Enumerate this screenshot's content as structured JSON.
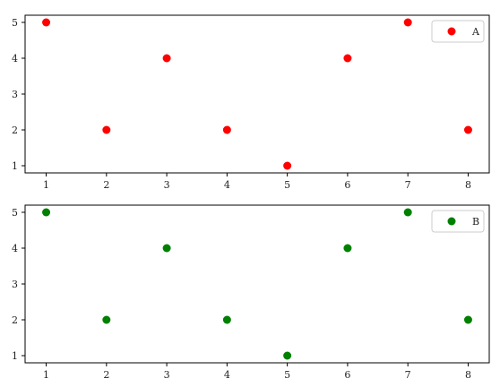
{
  "chart_data": [
    {
      "type": "scatter",
      "x": [
        1,
        2,
        3,
        4,
        5,
        6,
        7,
        8
      ],
      "series": [
        {
          "name": "A",
          "color": "#ff0000",
          "values": [
            5,
            2,
            4,
            2,
            1,
            4,
            5,
            2
          ]
        }
      ],
      "xticks": [
        1,
        2,
        3,
        4,
        5,
        6,
        7,
        8
      ],
      "yticks": [
        1,
        2,
        3,
        4,
        5
      ],
      "xlim": [
        0.65,
        8.35
      ],
      "ylim": [
        0.8,
        5.2
      ],
      "legend": "top-right",
      "grid": false
    },
    {
      "type": "scatter",
      "x": [
        1,
        2,
        3,
        4,
        5,
        6,
        7,
        8
      ],
      "series": [
        {
          "name": "B",
          "color": "#008000",
          "values": [
            5,
            2,
            4,
            2,
            1,
            4,
            5,
            2
          ]
        }
      ],
      "xticks": [
        1,
        2,
        3,
        4,
        5,
        6,
        7,
        8
      ],
      "yticks": [
        1,
        2,
        3,
        4,
        5
      ],
      "xlim": [
        0.65,
        8.35
      ],
      "ylim": [
        0.8,
        5.2
      ],
      "legend": "top-right",
      "grid": false
    }
  ]
}
